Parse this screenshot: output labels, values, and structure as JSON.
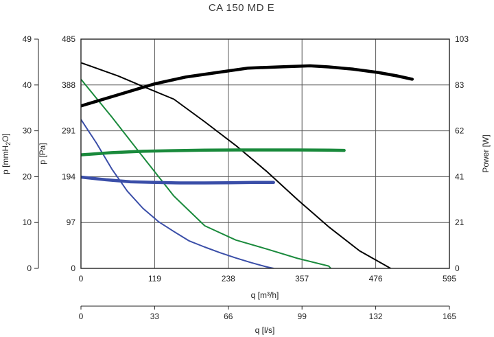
{
  "chart_data": {
    "type": "line",
    "title": "CA 150 MD E",
    "axes": {
      "x_m3h": {
        "label": "q [m³/h]",
        "ticks": [
          "0",
          "119",
          "238",
          "357",
          "476",
          "595"
        ],
        "range": [
          0,
          595
        ]
      },
      "x_ls": {
        "label": "q [l/s]",
        "ticks": [
          "0",
          "33",
          "66",
          "99",
          "132",
          "165"
        ],
        "range": [
          0,
          165
        ]
      },
      "y_pa": {
        "label": "p [Pa]",
        "ticks": [
          "0",
          "97",
          "194",
          "291",
          "388",
          "485"
        ],
        "range": [
          0,
          485
        ]
      },
      "y_mmh2o": {
        "label_main": "p [mmH",
        "label_sub": "2",
        "label_end": "O]",
        "ticks": [
          "0",
          "10",
          "20",
          "30",
          "40",
          "49"
        ],
        "range": [
          0,
          49
        ]
      },
      "y_power": {
        "label": "Power [W]",
        "ticks": [
          "0",
          "21",
          "41",
          "62",
          "83",
          "103"
        ],
        "range": [
          0,
          103
        ]
      }
    },
    "grid": true,
    "series": [
      {
        "kind": "pressure",
        "color": "#000000",
        "width": 2,
        "x": [
          0,
          60,
          100,
          150,
          200,
          250,
          300,
          350,
          400,
          450,
          500,
          540,
          565
        ],
        "y": [
          435,
          407,
          385,
          358,
          310,
          260,
          205,
          145,
          88,
          37,
          0,
          -40,
          -60
        ]
      },
      {
        "kind": "pressure",
        "color": "#1a8a3c",
        "width": 2,
        "x": [
          0,
          50,
          100,
          150,
          200,
          250,
          300,
          350,
          400,
          425
        ],
        "y": [
          400,
          320,
          236,
          153,
          90,
          60,
          41,
          21,
          5,
          -30
        ]
      },
      {
        "kind": "pressure",
        "color": "#3a4ea8",
        "width": 2,
        "x": [
          0,
          25,
          50,
          75,
          100,
          125,
          150,
          175,
          200,
          225,
          250,
          275,
          300,
          311
        ],
        "y": [
          315,
          265,
          210,
          163,
          127,
          99,
          78,
          58,
          45,
          33,
          22,
          12,
          3,
          0
        ]
      },
      {
        "kind": "power",
        "color": "#000000",
        "width": 4.5,
        "x": [
          0,
          60,
          120,
          170,
          220,
          270,
          320,
          370,
          400,
          440,
          480,
          510,
          535
        ],
        "y": [
          73,
          78,
          83,
          86,
          88,
          90,
          90.5,
          91,
          90.5,
          89.5,
          88,
          86.5,
          85
        ]
      },
      {
        "kind": "power",
        "color": "#1a8a3c",
        "width": 4.5,
        "x": [
          0,
          50,
          100,
          150,
          200,
          250,
          300,
          350,
          400,
          425
        ],
        "y": [
          51,
          52,
          52.6,
          52.9,
          53.1,
          53.2,
          53.2,
          53.2,
          53.1,
          53
        ]
      },
      {
        "kind": "power",
        "color": "#3a4ea8",
        "width": 4.5,
        "x": [
          0,
          40,
          80,
          120,
          160,
          200,
          240,
          280,
          311
        ],
        "y": [
          41,
          39.8,
          38.9,
          38.6,
          38.4,
          38.4,
          38.5,
          38.6,
          38.6
        ]
      }
    ]
  }
}
